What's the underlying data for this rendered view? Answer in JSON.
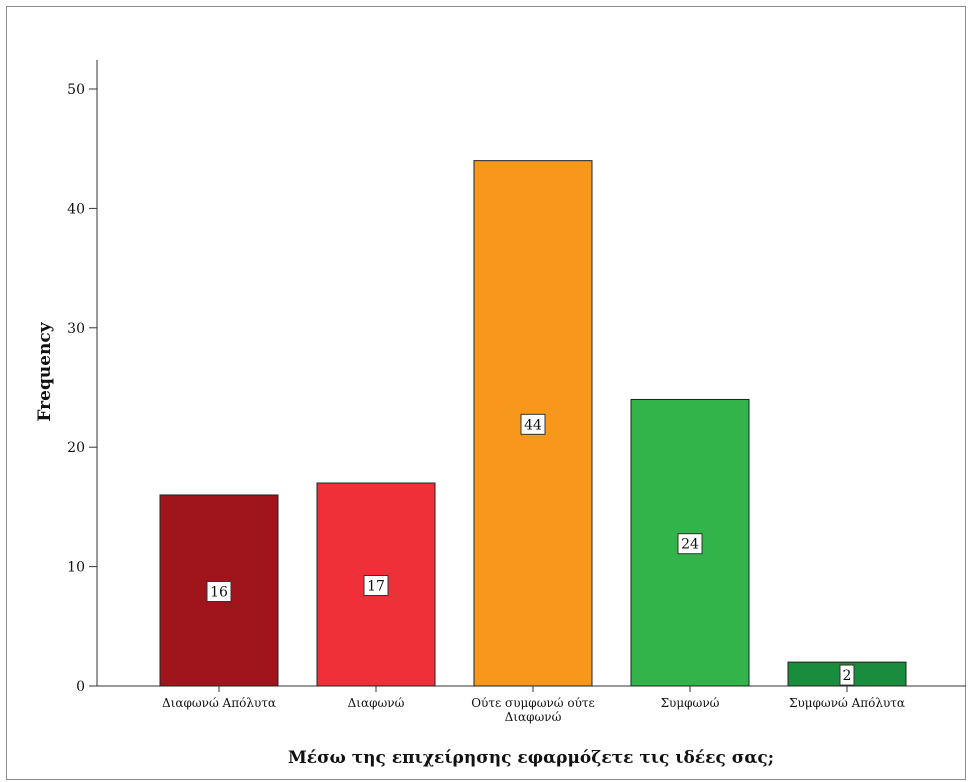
{
  "chart_data": {
    "type": "bar",
    "categories": [
      "Διαφωνώ Απόλυτα",
      "Διαφωνώ",
      "Ούτε συμφωνώ ούτε Διαφωνώ",
      "Συμφωνώ",
      "Συμφωνώ Απόλυτα"
    ],
    "values": [
      16,
      17,
      44,
      24,
      2
    ],
    "colors": [
      "#a0151b",
      "#ef3038",
      "#f7981d",
      "#33b44a",
      "#1a8c3e"
    ],
    "title": "",
    "xlabel": "Μέσω της επιχείρησης εφαρμόζετε τις ιδέες σας;",
    "ylabel": "Frequency",
    "ylim": [
      0,
      50
    ],
    "yticks": [
      0,
      10,
      20,
      30,
      40,
      50
    ],
    "grid": false,
    "data_labels": true
  }
}
